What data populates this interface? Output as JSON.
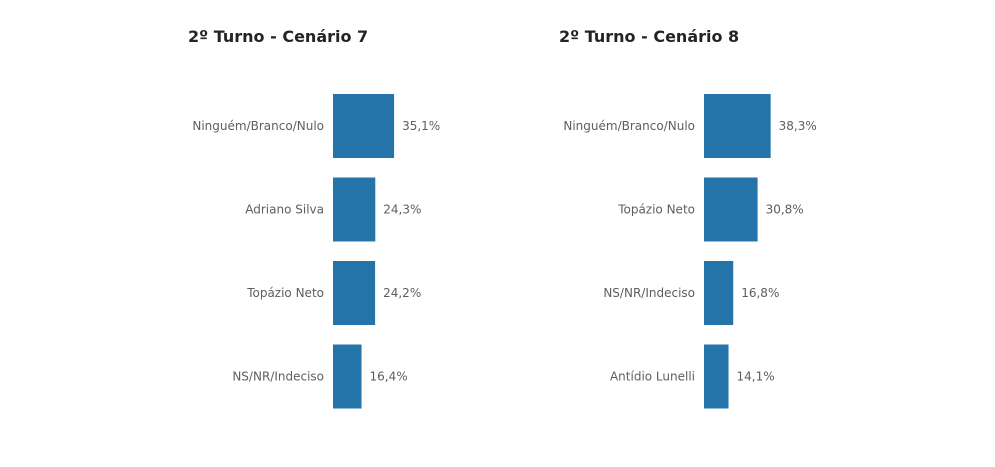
{
  "chart_data": [
    {
      "type": "bar",
      "orientation": "horizontal",
      "title": "2º Turno - Cenário 7",
      "categories": [
        "Ninguém/Branco/Nulo",
        "Adriano Silva",
        "Topázio Neto",
        "NS/NR/Indeciso"
      ],
      "values": [
        35.1,
        24.3,
        24.2,
        16.4
      ],
      "value_labels": [
        "35,1%",
        "24,3%",
        "24,2%",
        "16,4%"
      ],
      "xlim": [
        0,
        100
      ],
      "grid": false,
      "color": "#2574a9"
    },
    {
      "type": "bar",
      "orientation": "horizontal",
      "title": "2º Turno - Cenário 8",
      "categories": [
        "Ninguém/Branco/Nulo",
        "Topázio Neto",
        "NS/NR/Indeciso",
        "Antídio Lunelli"
      ],
      "values": [
        38.3,
        30.8,
        16.8,
        14.1
      ],
      "value_labels": [
        "38,3%",
        "30,8%",
        "16,8%",
        "14,1%"
      ],
      "xlim": [
        0,
        100
      ],
      "grid": false,
      "color": "#2574a9"
    }
  ]
}
